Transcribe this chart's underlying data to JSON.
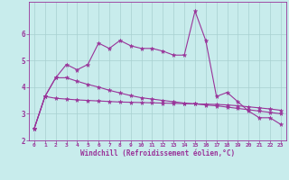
{
  "xlabel": "Windchill (Refroidissement éolien,°C)",
  "xlim": [
    -0.5,
    23.5
  ],
  "ylim": [
    2.0,
    7.2
  ],
  "yticks": [
    2,
    3,
    4,
    5,
    6
  ],
  "xticks": [
    0,
    1,
    2,
    3,
    4,
    5,
    6,
    7,
    8,
    9,
    10,
    11,
    12,
    13,
    14,
    15,
    16,
    17,
    18,
    19,
    20,
    21,
    22,
    23
  ],
  "background_color": "#c8ecec",
  "grid_color": "#a8d0d0",
  "line_color": "#993399",
  "line1_y": [
    2.45,
    3.65,
    4.35,
    4.85,
    4.65,
    4.85,
    5.65,
    5.45,
    5.75,
    5.55,
    5.45,
    5.45,
    5.35,
    5.2,
    5.2,
    6.85,
    5.75,
    3.65,
    3.8,
    3.45,
    3.1,
    2.85,
    2.85,
    2.6
  ],
  "line2_y": [
    2.45,
    3.65,
    4.35,
    4.35,
    4.22,
    4.1,
    4.0,
    3.88,
    3.78,
    3.68,
    3.6,
    3.55,
    3.5,
    3.45,
    3.4,
    3.37,
    3.33,
    3.3,
    3.25,
    3.2,
    3.15,
    3.1,
    3.05,
    3.0
  ],
  "line3_y": [
    2.45,
    3.65,
    3.58,
    3.55,
    3.52,
    3.5,
    3.48,
    3.46,
    3.44,
    3.43,
    3.42,
    3.41,
    3.4,
    3.39,
    3.38,
    3.37,
    3.36,
    3.35,
    3.33,
    3.3,
    3.26,
    3.22,
    3.18,
    3.13
  ],
  "markersize": 2.0,
  "linewidth": 0.8
}
